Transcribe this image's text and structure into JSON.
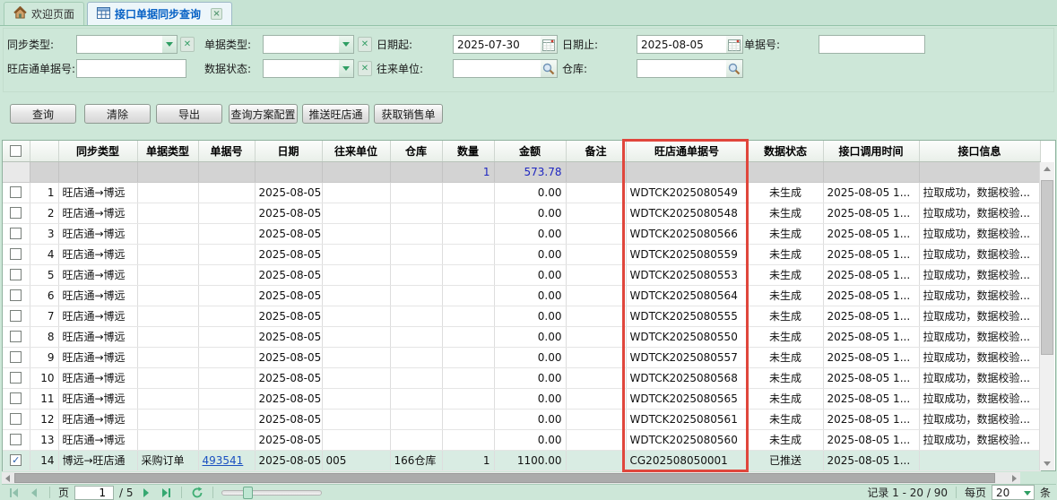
{
  "tabs": {
    "welcome": "欢迎页面",
    "active": "接口单据同步查询"
  },
  "filters": {
    "sync_type_label": "同步类型:",
    "doc_type_label": "单据类型:",
    "date_from_label": "日期起:",
    "date_from_value": "2025-07-30",
    "date_to_label": "日期止:",
    "date_to_value": "2025-08-05",
    "doc_no_label": "单据号:",
    "wdt_no_label": "旺店通单据号:",
    "data_status_label": "数据状态:",
    "partner_label": "往来单位:",
    "warehouse_label": "仓库:"
  },
  "toolbar": {
    "buttons": [
      "查询",
      "清除",
      "导出",
      "查询方案配置",
      "推送旺店通",
      "获取销售单"
    ]
  },
  "table": {
    "columns": [
      "同步类型",
      "单据类型",
      "单据号",
      "日期",
      "往来单位",
      "仓库",
      "数量",
      "金额",
      "备注",
      "旺店通单据号",
      "数据状态",
      "接口调用时间",
      "接口信息"
    ],
    "summary": {
      "qty": "1",
      "amount": "573.78"
    },
    "rows": [
      {
        "num": "1",
        "sync": "旺店通→博远",
        "doc_type": "",
        "doc_no": "",
        "date": "2025-08-05",
        "partner": "",
        "warehouse": "",
        "qty": "",
        "amount": "0.00",
        "remark": "",
        "wdt_no": "WDTCK2025080549",
        "status": "未生成",
        "call_time": "2025-08-05 1...",
        "info": "拉取成功，数据校验...",
        "checked": false,
        "selected": false
      },
      {
        "num": "2",
        "sync": "旺店通→博远",
        "doc_type": "",
        "doc_no": "",
        "date": "2025-08-05",
        "partner": "",
        "warehouse": "",
        "qty": "",
        "amount": "0.00",
        "remark": "",
        "wdt_no": "WDTCK2025080548",
        "status": "未生成",
        "call_time": "2025-08-05 1...",
        "info": "拉取成功，数据校验...",
        "checked": false,
        "selected": false
      },
      {
        "num": "3",
        "sync": "旺店通→博远",
        "doc_type": "",
        "doc_no": "",
        "date": "2025-08-05",
        "partner": "",
        "warehouse": "",
        "qty": "",
        "amount": "0.00",
        "remark": "",
        "wdt_no": "WDTCK2025080566",
        "status": "未生成",
        "call_time": "2025-08-05 1...",
        "info": "拉取成功，数据校验...",
        "checked": false,
        "selected": false
      },
      {
        "num": "4",
        "sync": "旺店通→博远",
        "doc_type": "",
        "doc_no": "",
        "date": "2025-08-05",
        "partner": "",
        "warehouse": "",
        "qty": "",
        "amount": "0.00",
        "remark": "",
        "wdt_no": "WDTCK2025080559",
        "status": "未生成",
        "call_time": "2025-08-05 1...",
        "info": "拉取成功，数据校验...",
        "checked": false,
        "selected": false
      },
      {
        "num": "5",
        "sync": "旺店通→博远",
        "doc_type": "",
        "doc_no": "",
        "date": "2025-08-05",
        "partner": "",
        "warehouse": "",
        "qty": "",
        "amount": "0.00",
        "remark": "",
        "wdt_no": "WDTCK2025080553",
        "status": "未生成",
        "call_time": "2025-08-05 1...",
        "info": "拉取成功，数据校验...",
        "checked": false,
        "selected": false
      },
      {
        "num": "6",
        "sync": "旺店通→博远",
        "doc_type": "",
        "doc_no": "",
        "date": "2025-08-05",
        "partner": "",
        "warehouse": "",
        "qty": "",
        "amount": "0.00",
        "remark": "",
        "wdt_no": "WDTCK2025080564",
        "status": "未生成",
        "call_time": "2025-08-05 1...",
        "info": "拉取成功，数据校验...",
        "checked": false,
        "selected": false
      },
      {
        "num": "7",
        "sync": "旺店通→博远",
        "doc_type": "",
        "doc_no": "",
        "date": "2025-08-05",
        "partner": "",
        "warehouse": "",
        "qty": "",
        "amount": "0.00",
        "remark": "",
        "wdt_no": "WDTCK2025080555",
        "status": "未生成",
        "call_time": "2025-08-05 1...",
        "info": "拉取成功，数据校验...",
        "checked": false,
        "selected": false
      },
      {
        "num": "8",
        "sync": "旺店通→博远",
        "doc_type": "",
        "doc_no": "",
        "date": "2025-08-05",
        "partner": "",
        "warehouse": "",
        "qty": "",
        "amount": "0.00",
        "remark": "",
        "wdt_no": "WDTCK2025080550",
        "status": "未生成",
        "call_time": "2025-08-05 1...",
        "info": "拉取成功，数据校验...",
        "checked": false,
        "selected": false
      },
      {
        "num": "9",
        "sync": "旺店通→博远",
        "doc_type": "",
        "doc_no": "",
        "date": "2025-08-05",
        "partner": "",
        "warehouse": "",
        "qty": "",
        "amount": "0.00",
        "remark": "",
        "wdt_no": "WDTCK2025080557",
        "status": "未生成",
        "call_time": "2025-08-05 1...",
        "info": "拉取成功，数据校验...",
        "checked": false,
        "selected": false
      },
      {
        "num": "10",
        "sync": "旺店通→博远",
        "doc_type": "",
        "doc_no": "",
        "date": "2025-08-05",
        "partner": "",
        "warehouse": "",
        "qty": "",
        "amount": "0.00",
        "remark": "",
        "wdt_no": "WDTCK2025080568",
        "status": "未生成",
        "call_time": "2025-08-05 1...",
        "info": "拉取成功，数据校验...",
        "checked": false,
        "selected": false
      },
      {
        "num": "11",
        "sync": "旺店通→博远",
        "doc_type": "",
        "doc_no": "",
        "date": "2025-08-05",
        "partner": "",
        "warehouse": "",
        "qty": "",
        "amount": "0.00",
        "remark": "",
        "wdt_no": "WDTCK2025080565",
        "status": "未生成",
        "call_time": "2025-08-05 1...",
        "info": "拉取成功，数据校验...",
        "checked": false,
        "selected": false
      },
      {
        "num": "12",
        "sync": "旺店通→博远",
        "doc_type": "",
        "doc_no": "",
        "date": "2025-08-05",
        "partner": "",
        "warehouse": "",
        "qty": "",
        "amount": "0.00",
        "remark": "",
        "wdt_no": "WDTCK2025080561",
        "status": "未生成",
        "call_time": "2025-08-05 1...",
        "info": "拉取成功，数据校验...",
        "checked": false,
        "selected": false
      },
      {
        "num": "13",
        "sync": "旺店通→博远",
        "doc_type": "",
        "doc_no": "",
        "date": "2025-08-05",
        "partner": "",
        "warehouse": "",
        "qty": "",
        "amount": "0.00",
        "remark": "",
        "wdt_no": "WDTCK2025080560",
        "status": "未生成",
        "call_time": "2025-08-05 1...",
        "info": "拉取成功，数据校验...",
        "checked": false,
        "selected": false
      },
      {
        "num": "14",
        "sync": "博远→旺店通",
        "doc_type": "采购订单",
        "doc_no": "493541",
        "date": "2025-08-05",
        "partner": "005",
        "warehouse": "166仓库",
        "qty": "1",
        "amount": "1100.00",
        "remark": "",
        "wdt_no": "CG202508050001",
        "status": "已推送",
        "call_time": "2025-08-05 1...",
        "info": "",
        "checked": true,
        "selected": true
      }
    ]
  },
  "pagination": {
    "page_label": "页",
    "page_value": "1",
    "page_total": "/ 5",
    "records_text": "记录 1 - 20 / 90",
    "per_page_label": "每页",
    "per_page_value": "20",
    "unit_label": "条"
  }
}
